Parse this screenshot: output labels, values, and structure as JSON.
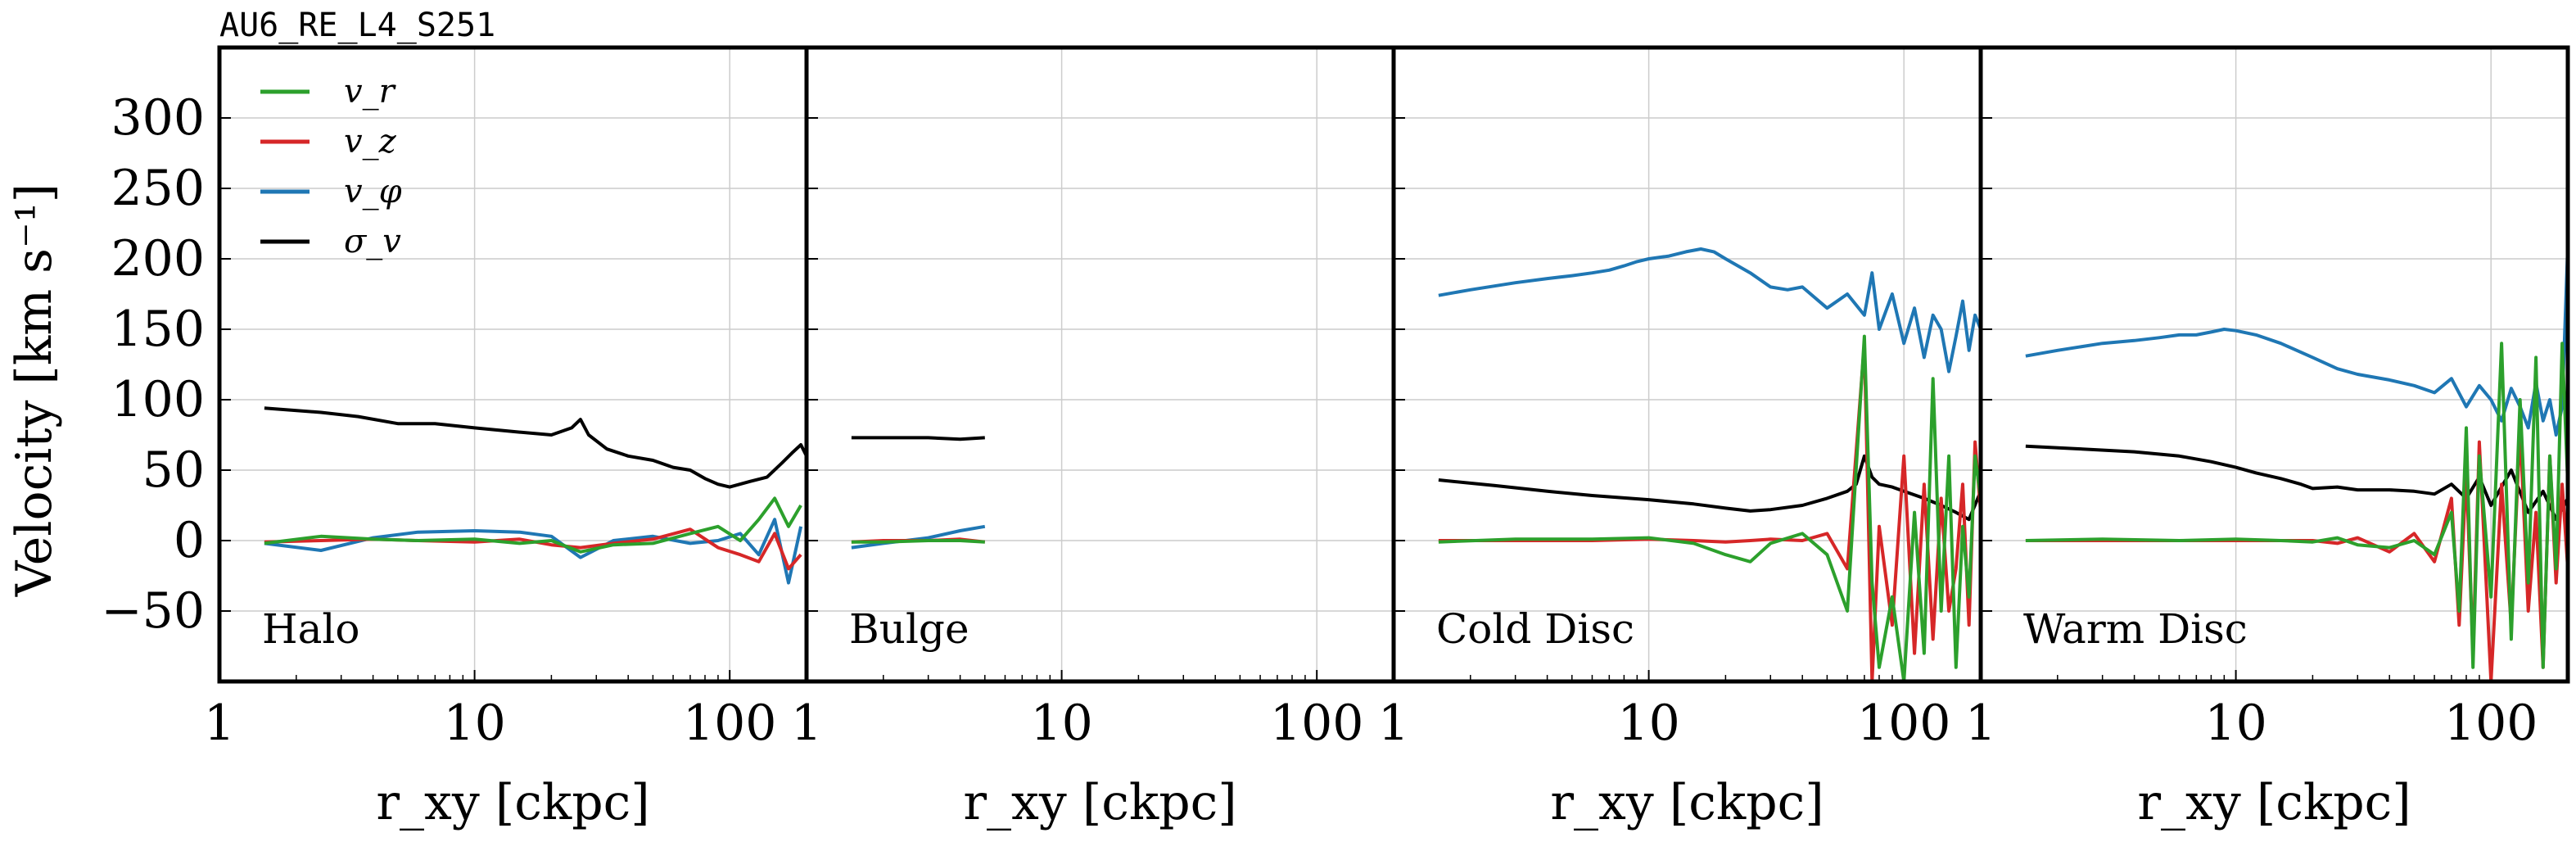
{
  "figure": {
    "title": "AU6_RE_L4_S251",
    "ylabel": "Velocity [km s⁻¹]",
    "xlabel": "r_xy [ckpc]"
  },
  "legend": [
    {
      "label": "v_r",
      "color": "#2ca02c"
    },
    {
      "label": "v_z",
      "color": "#d62728"
    },
    {
      "label": "v_φ",
      "color": "#1f77b4"
    },
    {
      "label": "σ_v",
      "color": "#000000"
    }
  ],
  "chart_data": [
    {
      "type": "line",
      "title": "Halo",
      "xscale": "log",
      "xlim": [
        1,
        200
      ],
      "ylim": [
        -100,
        350
      ],
      "xticks": [
        "1",
        "10",
        "100"
      ],
      "yticks": [
        "−50",
        "0",
        "50",
        "100",
        "150",
        "200",
        "250",
        "300"
      ],
      "grid": true,
      "series": [
        {
          "name": "v_r",
          "color": "#2ca02c",
          "x": [
            1.5,
            2.5,
            4,
            6,
            10,
            15,
            20,
            26,
            35,
            50,
            70,
            90,
            110,
            130,
            150,
            170,
            190
          ],
          "y": [
            -2,
            3,
            1,
            0,
            1,
            -2,
            0,
            -8,
            -3,
            -2,
            5,
            10,
            0,
            15,
            30,
            10,
            25
          ]
        },
        {
          "name": "v_z",
          "color": "#d62728",
          "x": [
            1.5,
            2.5,
            4,
            6,
            10,
            15,
            20,
            26,
            35,
            50,
            70,
            90,
            110,
            130,
            150,
            170,
            190
          ],
          "y": [
            -1,
            0,
            1,
            0,
            -1,
            1,
            -3,
            -5,
            -2,
            1,
            8,
            -5,
            -10,
            -15,
            5,
            -20,
            -10
          ]
        },
        {
          "name": "v_φ",
          "color": "#1f77b4",
          "x": [
            1.5,
            2.5,
            4,
            6,
            10,
            15,
            20,
            26,
            35,
            50,
            70,
            90,
            110,
            130,
            150,
            170,
            190
          ],
          "y": [
            -2,
            -7,
            2,
            6,
            7,
            6,
            3,
            -12,
            0,
            3,
            -2,
            0,
            5,
            -10,
            15,
            -30,
            10
          ]
        },
        {
          "name": "σ_v",
          "color": "#000000",
          "x": [
            1.5,
            2.5,
            3.5,
            5,
            7,
            10,
            15,
            20,
            24,
            26,
            28,
            33,
            40,
            50,
            60,
            70,
            80,
            90,
            100,
            120,
            140,
            160,
            175,
            190,
            200
          ],
          "y": [
            94,
            91,
            88,
            83,
            83,
            80,
            77,
            75,
            80,
            86,
            75,
            65,
            60,
            57,
            52,
            50,
            44,
            40,
            38,
            42,
            45,
            55,
            62,
            68,
            60
          ]
        }
      ]
    },
    {
      "type": "line",
      "title": "Bulge",
      "xscale": "log",
      "xlim": [
        1,
        200
      ],
      "ylim": [
        -100,
        350
      ],
      "xticks": [
        "1",
        "10",
        "100"
      ],
      "grid": true,
      "series": [
        {
          "name": "v_r",
          "color": "#2ca02c",
          "x": [
            1.5,
            2,
            3,
            4,
            5
          ],
          "y": [
            -1,
            -1,
            0,
            0,
            -1
          ]
        },
        {
          "name": "v_z",
          "color": "#d62728",
          "x": [
            1.5,
            2,
            3,
            4,
            5
          ],
          "y": [
            -1,
            0,
            0,
            1,
            -1
          ]
        },
        {
          "name": "v_φ",
          "color": "#1f77b4",
          "x": [
            1.5,
            2,
            3,
            4,
            5
          ],
          "y": [
            -5,
            -2,
            2,
            7,
            10
          ]
        },
        {
          "name": "σ_v",
          "color": "#000000",
          "x": [
            1.5,
            2,
            3,
            4,
            5
          ],
          "y": [
            73,
            73,
            73,
            72,
            73
          ]
        }
      ]
    },
    {
      "type": "line",
      "title": "Cold Disc",
      "xscale": "log",
      "xlim": [
        1,
        200
      ],
      "ylim": [
        -100,
        350
      ],
      "xticks": [
        "1",
        "10",
        "100"
      ],
      "grid": true,
      "series": [
        {
          "name": "v_r",
          "color": "#2ca02c",
          "x": [
            1.5,
            3,
            6,
            10,
            15,
            20,
            25,
            30,
            40,
            50,
            60,
            70,
            75,
            80,
            90,
            100,
            110,
            120,
            130,
            140,
            150,
            160,
            170,
            180,
            190,
            200
          ],
          "y": [
            -1,
            1,
            1,
            2,
            -2,
            -10,
            -15,
            -2,
            5,
            -10,
            -50,
            145,
            -30,
            -90,
            -40,
            -100,
            20,
            -80,
            115,
            -50,
            60,
            -90,
            10,
            -40,
            60,
            30
          ]
        },
        {
          "name": "v_z",
          "color": "#d62728",
          "x": [
            1.5,
            3,
            6,
            10,
            15,
            20,
            25,
            30,
            40,
            50,
            60,
            70,
            75,
            80,
            90,
            100,
            110,
            120,
            130,
            140,
            150,
            160,
            170,
            180,
            190,
            200
          ],
          "y": [
            0,
            0,
            0,
            1,
            0,
            -1,
            0,
            1,
            0,
            5,
            -20,
            140,
            -100,
            10,
            -60,
            60,
            -80,
            40,
            -70,
            30,
            -50,
            -20,
            40,
            -60,
            70,
            20
          ]
        },
        {
          "name": "v_φ",
          "color": "#1f77b4",
          "x": [
            1.5,
            2,
            3,
            4,
            5,
            6,
            7,
            8,
            9,
            10,
            12,
            14,
            16,
            18,
            20,
            25,
            30,
            35,
            40,
            50,
            60,
            70,
            75,
            80,
            90,
            100,
            110,
            120,
            130,
            140,
            150,
            160,
            170,
            180,
            190,
            200
          ],
          "y": [
            174,
            178,
            183,
            186,
            188,
            190,
            192,
            195,
            198,
            200,
            202,
            205,
            207,
            205,
            200,
            190,
            180,
            178,
            180,
            165,
            175,
            160,
            190,
            150,
            175,
            140,
            165,
            130,
            160,
            150,
            120,
            145,
            170,
            135,
            160,
            150
          ]
        },
        {
          "name": "σ_v",
          "color": "#000000",
          "x": [
            1.5,
            2.5,
            4,
            6,
            10,
            15,
            20,
            25,
            30,
            40,
            50,
            60,
            65,
            70,
            75,
            80,
            90,
            100,
            120,
            140,
            160,
            180,
            200
          ],
          "y": [
            43,
            39,
            35,
            32,
            29,
            26,
            23,
            21,
            22,
            25,
            30,
            35,
            40,
            60,
            45,
            40,
            38,
            35,
            30,
            25,
            20,
            15,
            35
          ]
        }
      ]
    },
    {
      "type": "line",
      "title": "Warm Disc",
      "xscale": "log",
      "xlim": [
        1,
        200
      ],
      "ylim": [
        -100,
        350
      ],
      "xticks": [
        "1",
        "10",
        "100"
      ],
      "grid": true,
      "series": [
        {
          "name": "v_r",
          "color": "#2ca02c",
          "x": [
            1.5,
            3,
            6,
            10,
            15,
            20,
            25,
            30,
            40,
            50,
            60,
            70,
            75,
            80,
            85,
            90,
            100,
            110,
            120,
            130,
            140,
            150,
            160,
            170,
            180,
            190,
            200
          ],
          "y": [
            0,
            1,
            0,
            1,
            0,
            -1,
            2,
            -3,
            -5,
            0,
            -10,
            20,
            -50,
            80,
            -90,
            60,
            -40,
            140,
            -70,
            100,
            -30,
            130,
            -90,
            60,
            -20,
            140,
            40
          ]
        },
        {
          "name": "v_z",
          "color": "#d62728",
          "x": [
            1.5,
            3,
            6,
            10,
            15,
            20,
            25,
            30,
            40,
            50,
            60,
            70,
            75,
            80,
            85,
            90,
            100,
            110,
            120,
            130,
            140,
            150,
            160,
            170,
            180,
            190,
            200
          ],
          "y": [
            0,
            0,
            0,
            0,
            0,
            0,
            -2,
            2,
            -8,
            5,
            -15,
            30,
            -60,
            50,
            -80,
            70,
            -100,
            40,
            -60,
            80,
            -50,
            20,
            -90,
            60,
            -30,
            40,
            -20
          ]
        },
        {
          "name": "v_φ",
          "color": "#1f77b4",
          "x": [
            1.5,
            2,
            3,
            4,
            5,
            6,
            7,
            8,
            9,
            10,
            12,
            15,
            20,
            25,
            30,
            40,
            50,
            60,
            70,
            80,
            90,
            100,
            110,
            120,
            130,
            140,
            150,
            160,
            170,
            180,
            190,
            200
          ],
          "y": [
            131,
            135,
            140,
            142,
            144,
            146,
            146,
            148,
            150,
            149,
            146,
            140,
            130,
            122,
            118,
            114,
            110,
            105,
            115,
            95,
            110,
            100,
            85,
            108,
            95,
            80,
            112,
            85,
            100,
            75,
            95,
            210
          ]
        },
        {
          "name": "σ_v",
          "color": "#000000",
          "x": [
            1.5,
            2.5,
            4,
            6,
            8,
            10,
            12,
            15,
            18,
            20,
            25,
            30,
            40,
            50,
            60,
            70,
            80,
            90,
            100,
            120,
            140,
            160,
            180,
            200
          ],
          "y": [
            67,
            65,
            63,
            60,
            56,
            52,
            48,
            44,
            40,
            37,
            38,
            36,
            36,
            35,
            33,
            40,
            30,
            45,
            25,
            50,
            20,
            35,
            15,
            30
          ]
        }
      ]
    }
  ]
}
